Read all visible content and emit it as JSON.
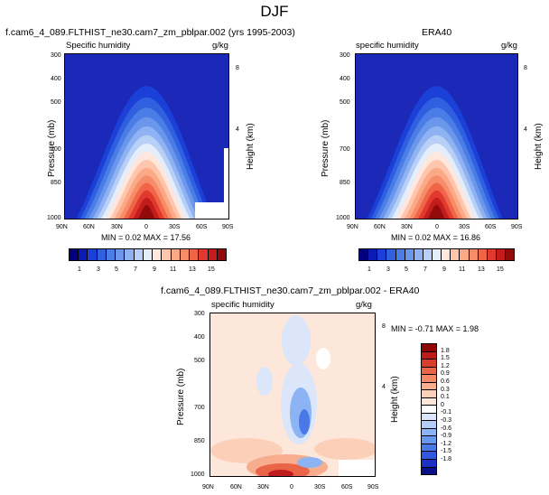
{
  "page_title": "DJF",
  "colors": {
    "bg_blue": "#1b28b8",
    "humidity_levels": [
      "#00007f",
      "#0d1bb5",
      "#1b40d8",
      "#3060e0",
      "#4a7ee6",
      "#6a97ec",
      "#8fb3f2",
      "#b8cff7",
      "#e4eefb",
      "#ffe7dd",
      "#fdc6ad",
      "#fba987",
      "#f78c68",
      "#f06548",
      "#e1392e",
      "#c21d1c",
      "#920a0a"
    ],
    "diff_levels": [
      "#0a0f8a",
      "#1e2fc4",
      "#3058e0",
      "#4a78e8",
      "#6797ee",
      "#8cb3f4",
      "#b4cef8",
      "#dbe6fa",
      "#ffffff",
      "#fde7da",
      "#fcd0b8",
      "#f8ad8f",
      "#f48867",
      "#ea6448",
      "#d93d2d",
      "#be1d1d",
      "#900606"
    ]
  },
  "chart_data": [
    {
      "type": "heatmap",
      "title": "f.cam6_4_089.FLTHIST_ne30.cam7_zm_pblpar.002 (yrs 1995-2003)",
      "subtitle_left": "Specific humidity",
      "subtitle_right": "g/kg",
      "xlabel": "",
      "ylabel": "Pressure (mb)",
      "ylabel_right": "Height (km)",
      "x_ticks": [
        "90N",
        "60N",
        "30N",
        "0",
        "30S",
        "60S",
        "90S"
      ],
      "y_ticks": [
        "300",
        "400",
        "500",
        "700",
        "850",
        "1000"
      ],
      "y_ticks_right": [
        "8",
        "4"
      ],
      "min": 0.02,
      "max": 17.56,
      "stats_text": "MIN =  0.02  MAX =  17.56",
      "colorbar_labels": [
        "1",
        "3",
        "5",
        "7",
        "9",
        "11",
        "13",
        "15"
      ]
    },
    {
      "type": "heatmap",
      "title": "ERA40",
      "subtitle_left": "specific humidity",
      "subtitle_right": "g/kg",
      "xlabel": "",
      "ylabel": "Pressure (mb)",
      "ylabel_right": "Height (km)",
      "x_ticks": [
        "90N",
        "60N",
        "30N",
        "0",
        "30S",
        "60S",
        "90S"
      ],
      "y_ticks": [
        "300",
        "400",
        "500",
        "700",
        "850",
        "1000"
      ],
      "y_ticks_right": [
        "8",
        "4"
      ],
      "min": 0.02,
      "max": 16.86,
      "stats_text": "MIN =  0.02  MAX =  16.86",
      "colorbar_labels": [
        "1",
        "3",
        "5",
        "7",
        "9",
        "11",
        "13",
        "15"
      ]
    },
    {
      "type": "heatmap",
      "title": "f.cam6_4_089.FLTHIST_ne30.cam7_zm_pblpar.002 - ERA40",
      "subtitle_left": "specific humidity",
      "subtitle_right": "g/kg",
      "xlabel": "",
      "ylabel": "Pressure (mb)",
      "ylabel_right": "Height (km)",
      "x_ticks": [
        "90N",
        "60N",
        "30N",
        "0",
        "30S",
        "60S",
        "90S"
      ],
      "y_ticks": [
        "300",
        "400",
        "500",
        "700",
        "850",
        "1000"
      ],
      "y_ticks_right": [
        "8",
        "4"
      ],
      "min": -0.71,
      "max": 1.98,
      "stats_text": "MIN = -0.71  MAX =   1.98",
      "colorbar_labels": [
        "1.8",
        "1.5",
        "1.2",
        "0.9",
        "0.6",
        "0.3",
        "0.1",
        "0",
        "-0.1",
        "-0.3",
        "-0.6",
        "-0.9",
        "-1.2",
        "-1.5",
        "-1.8"
      ]
    }
  ]
}
